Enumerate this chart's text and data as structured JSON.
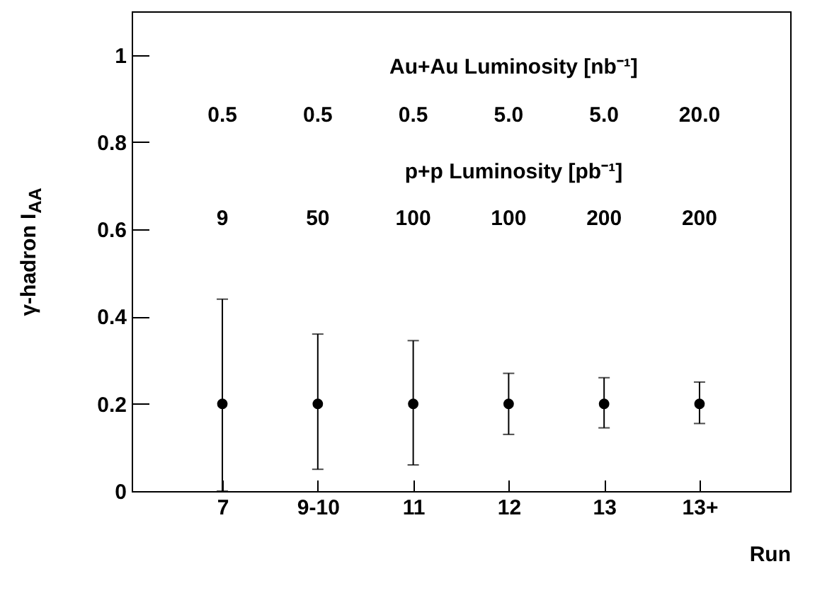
{
  "chart_data": {
    "type": "scatter",
    "ylabel": "γ-hadron I$_{AA}$",
    "xlabel": "Run",
    "categories": [
      "7",
      "9-10",
      "11",
      "12",
      "13",
      "13+"
    ],
    "values": [
      0.2,
      0.2,
      0.2,
      0.2,
      0.2,
      0.2
    ],
    "errors": [
      [
        0,
        0.44
      ],
      [
        0.05,
        0.36
      ],
      [
        0.06,
        0.345
      ],
      [
        0.13,
        0.27
      ],
      [
        0.145,
        0.26
      ],
      [
        0.155,
        0.25
      ]
    ],
    "color": "#000000",
    "marker": "circle",
    "grid": false,
    "ylim": [
      0,
      1.1
    ],
    "yticks": [
      0,
      0.2,
      0.4,
      0.6,
      0.8,
      1
    ],
    "annotations": [
      "Au+Au Luminosity [nb⁻¹]",
      "0.5",
      "0.5",
      "0.5",
      "5.0",
      "5.0",
      "20.0",
      "p+p Luminosity [pb⁻¹]",
      "9",
      "50",
      "100",
      "100",
      "200",
      "200"
    ]
  }
}
